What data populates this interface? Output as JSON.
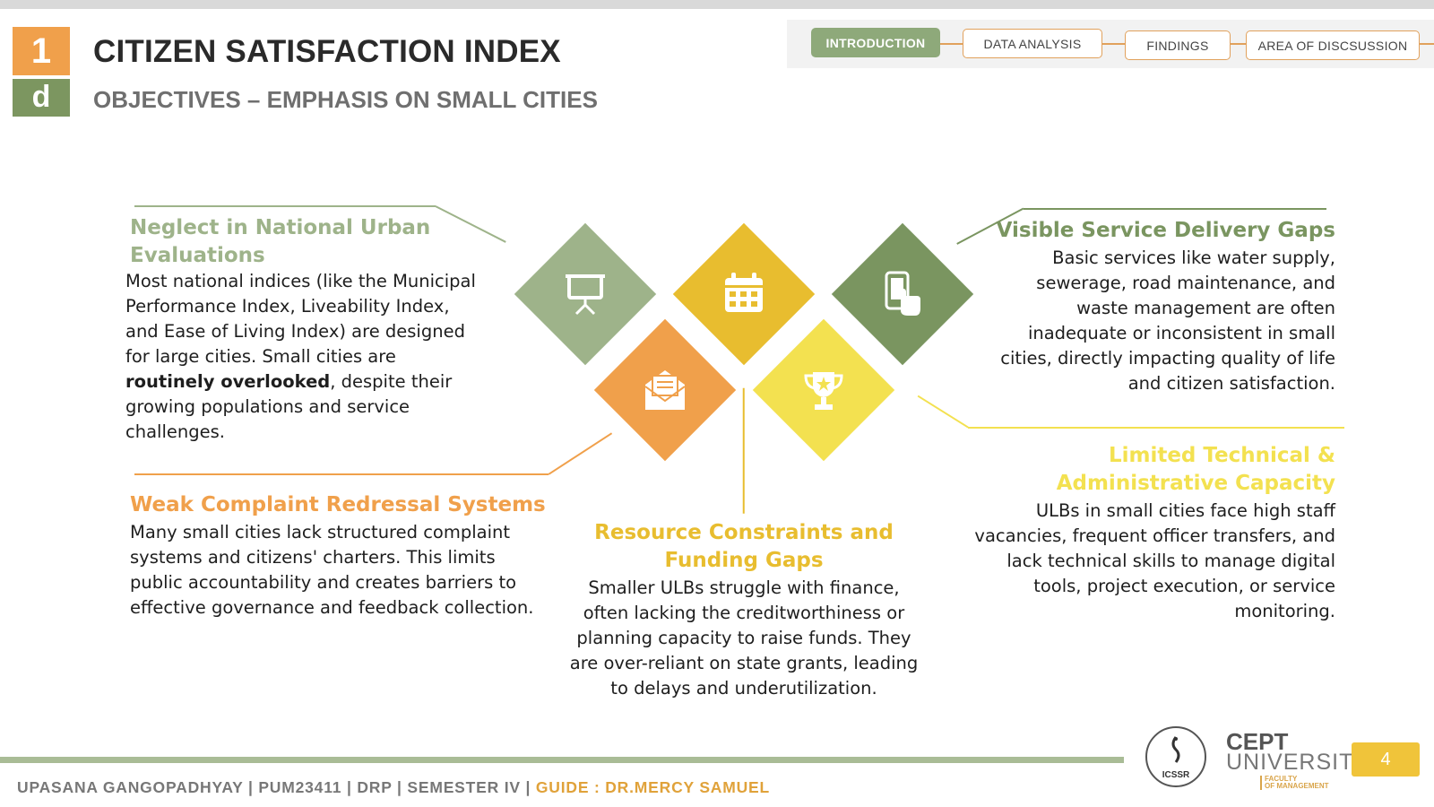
{
  "header": {
    "logo_top": "1",
    "logo_bottom": "d",
    "title": "CITIZEN SATISFACTION INDEX",
    "subtitle": "OBJECTIVES – EMPHASIS ON SMALL CITIES"
  },
  "nav": {
    "tabs": [
      {
        "label": "INTRODUCTION",
        "active": true
      },
      {
        "label": "DATA ANALYSIS",
        "active": false
      },
      {
        "label": "FINDINGS",
        "active": false
      },
      {
        "label": "AREA OF DISCSUSSION",
        "active": false
      }
    ]
  },
  "colors": {
    "sage": "#9eb38a",
    "mustard": "#e8bd2f",
    "olive": "#7a9560",
    "orange": "#f0a04b",
    "yellow": "#f3e150"
  },
  "icons": [
    "presentation-icon",
    "calendar-icon",
    "tap-phone-icon",
    "envelope-icon",
    "trophy-icon"
  ],
  "sections": {
    "neglect": {
      "heading": "Neglect in National Urban Evaluations",
      "body_before": "Most national indices (like the Municipal Performance Index, Liveability Index, and Ease of Living Index) are designed for large cities. Small cities are ",
      "body_bold": "routinely overlooked",
      "body_after": ", despite their growing populations and service challenges."
    },
    "visible": {
      "heading": "Visible Service Delivery Gaps",
      "body": "Basic services like water supply, sewerage, road maintenance, and waste management are often inadequate or inconsistent in small cities, directly impacting quality of life and citizen satisfaction."
    },
    "weak": {
      "heading": "Weak Complaint Redressal Systems",
      "body": "Many small cities lack structured complaint systems and citizens' charters. This limits public accountability and creates barriers to effective governance and feedback collection."
    },
    "resource": {
      "heading": "Resource Constraints and Funding Gaps",
      "body": "Smaller ULBs struggle with finance, often lacking the creditworthiness or planning capacity to raise funds. They are over-reliant on state grants, leading to delays and underutilization."
    },
    "limited": {
      "heading": "Limited Technical & Administrative Capacity",
      "body": "ULBs in small cities face high staff vacancies, frequent officer transfers, and lack technical skills to manage digital tools, project execution, or service monitoring."
    }
  },
  "footer": {
    "info": "UPASANA GANGOPADHYAY | PUM23411 | DRP | SEMESTER IV | ",
    "guide": "GUIDE : DR.MERCY SAMUEL",
    "seal_text": "ICSSR",
    "cept_line1": "CEPT",
    "cept_line2": "UNIVERSITY",
    "cept_fac1": "FACULTY",
    "cept_fac2": "OF MANAGEMENT",
    "page": "4"
  }
}
